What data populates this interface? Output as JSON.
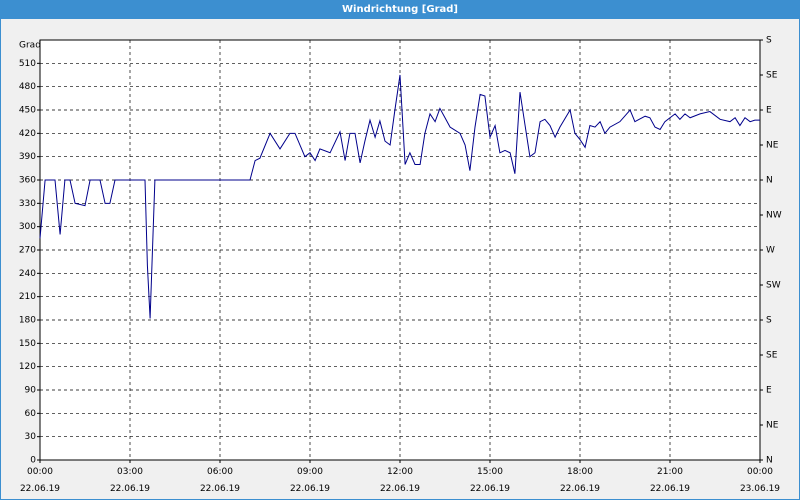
{
  "window_title": "Windrichtung [Grad]",
  "chart_data": {
    "type": "line",
    "ylabel": "Grad",
    "x": [
      0,
      0.17,
      0.5,
      0.67,
      0.83,
      1.0,
      1.17,
      1.5,
      1.67,
      2.0,
      2.17,
      2.33,
      2.5,
      3.5,
      3.58,
      3.67,
      3.83,
      7.0,
      7.17,
      7.33,
      7.67,
      8.0,
      8.33,
      8.5,
      8.83,
      9.0,
      9.17,
      9.33,
      9.67,
      10.0,
      10.17,
      10.33,
      10.5,
      10.67,
      10.83,
      11.0,
      11.17,
      11.33,
      11.5,
      11.67,
      11.83,
      12.0,
      12.17,
      12.33,
      12.5,
      12.67,
      12.83,
      13.0,
      13.17,
      13.33,
      13.5,
      13.67,
      14.0,
      14.17,
      14.33,
      14.5,
      14.67,
      14.83,
      15.0,
      15.17,
      15.33,
      15.5,
      15.67,
      15.83,
      16.0,
      16.17,
      16.33,
      16.5,
      16.67,
      16.83,
      17.0,
      17.17,
      17.33,
      17.67,
      17.83,
      18.0,
      18.17,
      18.33,
      18.5,
      18.67,
      18.83,
      19.0,
      19.33,
      19.67,
      19.83,
      20.17,
      20.33,
      20.5,
      20.67,
      20.83,
      21.0,
      21.17,
      21.33,
      21.5,
      21.67,
      22.0,
      22.33,
      22.67,
      23.0,
      23.17,
      23.33,
      23.5,
      23.67,
      23.83,
      24.0
    ],
    "series": [
      {
        "name": "Windrichtung",
        "color": "#00008b",
        "values": [
          285,
          360,
          360,
          290,
          360,
          360,
          330,
          327,
          360,
          360,
          330,
          330,
          360,
          360,
          250,
          182,
          360,
          360,
          385,
          388,
          420,
          400,
          420,
          420,
          390,
          395,
          385,
          400,
          395,
          422,
          385,
          420,
          420,
          382,
          410,
          437,
          415,
          436,
          410,
          405,
          450,
          495,
          380,
          395,
          380,
          380,
          420,
          445,
          435,
          452,
          440,
          428,
          420,
          405,
          372,
          428,
          470,
          468,
          415,
          430,
          395,
          398,
          395,
          368,
          473,
          430,
          390,
          395,
          435,
          438,
          430,
          415,
          428,
          450,
          420,
          412,
          402,
          430,
          428,
          435,
          420,
          428,
          435,
          450,
          435,
          442,
          440,
          428,
          425,
          435,
          440,
          445,
          438,
          445,
          440,
          445,
          448,
          438,
          435,
          440,
          430,
          440,
          435,
          437,
          437
        ]
      }
    ],
    "xlim": [
      0,
      24
    ],
    "xticks": [
      {
        "value": 0,
        "label": "00:00\n22.06.19"
      },
      {
        "value": 3,
        "label": "03:00\n22.06.19"
      },
      {
        "value": 6,
        "label": "06:00\n22.06.19"
      },
      {
        "value": 9,
        "label": "09:00\n22.06.19"
      },
      {
        "value": 12,
        "label": "12:00\n22.06.19"
      },
      {
        "value": 15,
        "label": "15:00\n22.06.19"
      },
      {
        "value": 18,
        "label": "18:00\n22.06.19"
      },
      {
        "value": 21,
        "label": "21:00\n22.06.19"
      },
      {
        "value": 24,
        "label": "00:00\n23.06.19"
      }
    ],
    "ylim": [
      0,
      540
    ],
    "yticks": [
      0,
      30,
      60,
      90,
      120,
      150,
      180,
      210,
      240,
      270,
      300,
      330,
      360,
      390,
      420,
      450,
      480,
      510
    ],
    "y2lim": [
      0,
      540
    ],
    "y2ticks": [
      {
        "value": 0,
        "label": "N"
      },
      {
        "value": 45,
        "label": "NE"
      },
      {
        "value": 90,
        "label": "E"
      },
      {
        "value": 135,
        "label": "SE"
      },
      {
        "value": 180,
        "label": "S"
      },
      {
        "value": 225,
        "label": "SW"
      },
      {
        "value": 270,
        "label": "W"
      },
      {
        "value": 315,
        "label": "NW"
      },
      {
        "value": 360,
        "label": "N"
      },
      {
        "value": 405,
        "label": "NE"
      },
      {
        "value": 450,
        "label": "E"
      },
      {
        "value": 495,
        "label": "SE"
      },
      {
        "value": 540,
        "label": "S"
      }
    ],
    "grid": true
  }
}
